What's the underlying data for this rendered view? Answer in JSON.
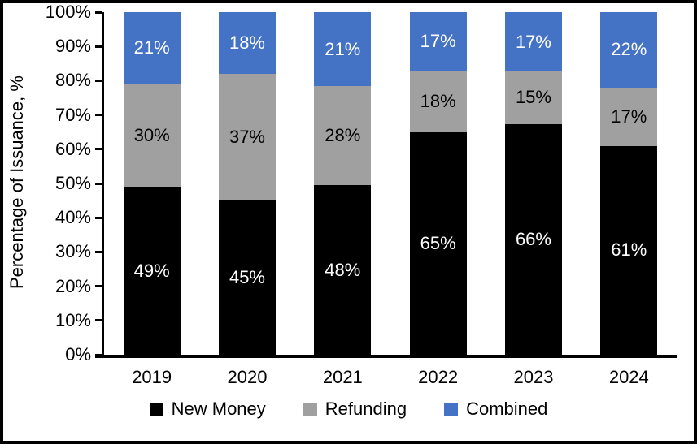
{
  "chart_data": {
    "type": "bar",
    "stacked": true,
    "title": "",
    "xlabel": "",
    "ylabel": "Percentage of Issuance, %",
    "categories": [
      "2019",
      "2020",
      "2021",
      "2022",
      "2023",
      "2024"
    ],
    "series": [
      {
        "name": "New Money",
        "color": "#000000",
        "label_color": "#ffffff",
        "values": [
          49,
          45,
          48,
          65,
          66,
          61
        ]
      },
      {
        "name": "Refunding",
        "color": "#a0a0a0",
        "label_color": "#000000",
        "values": [
          30,
          37,
          28,
          18,
          15,
          17
        ]
      },
      {
        "name": "Combined",
        "color": "#4472c4",
        "label_color": "#ffffff",
        "values": [
          21,
          18,
          21,
          17,
          17,
          22
        ]
      }
    ],
    "value_suffix": "%",
    "ylim": [
      0,
      100
    ],
    "yticks": [
      "100%",
      "90%",
      "80%",
      "70%",
      "60%",
      "50%",
      "40%",
      "30%",
      "20%",
      "10%",
      "0%"
    ],
    "grid": false,
    "legend_position": "bottom",
    "axis_color": "#000000",
    "background_color": "#ffffff"
  }
}
